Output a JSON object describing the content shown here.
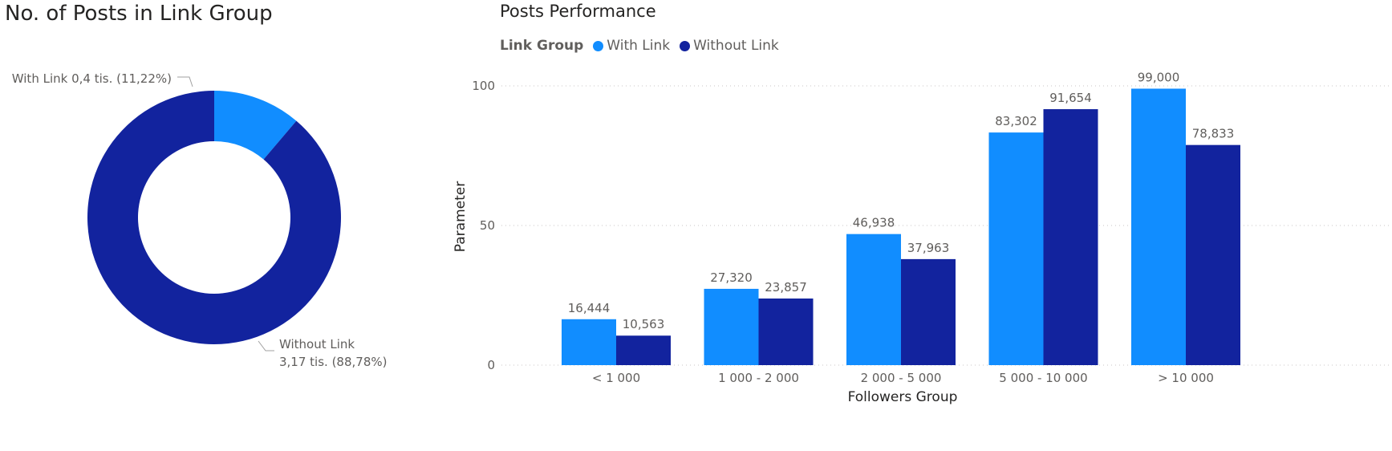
{
  "chart_data": [
    {
      "type": "pie",
      "variant": "donut",
      "title": "No. of Posts in Link Group",
      "slices": [
        {
          "label": "With Link",
          "value_text": "0,4 tis.",
          "percent_text": "(11,22%)",
          "percent": 11.22,
          "color": "#118DFF"
        },
        {
          "label": "Without Link",
          "value_text": "3,17 tis.",
          "percent_text": "(88,78%)",
          "percent": 88.78,
          "color": "#12239E"
        }
      ]
    },
    {
      "type": "bar",
      "title": "Posts Performance",
      "legend_title": "Link Group",
      "legend_position": "top-left",
      "xlabel": "Followers Group",
      "ylabel": "Parameter",
      "ylim": [
        0,
        100
      ],
      "yticks": [
        0,
        50,
        100
      ],
      "grid": true,
      "categories": [
        "< 1 000",
        "1 000 - 2 000",
        "2 000 - 5 000",
        "5 000 - 10 000",
        "> 10 000"
      ],
      "series": [
        {
          "name": "With Link",
          "color": "#118DFF",
          "values": [
            16.444,
            27.32,
            46.938,
            83.302,
            99.0
          ],
          "labels": [
            "16,444",
            "27,320",
            "46,938",
            "83,302",
            "99,000"
          ]
        },
        {
          "name": "Without Link",
          "color": "#12239E",
          "values": [
            10.563,
            23.857,
            37.963,
            91.654,
            78.833
          ],
          "labels": [
            "10,563",
            "23,857",
            "37,963",
            "91,654",
            "78,833"
          ]
        }
      ]
    }
  ]
}
